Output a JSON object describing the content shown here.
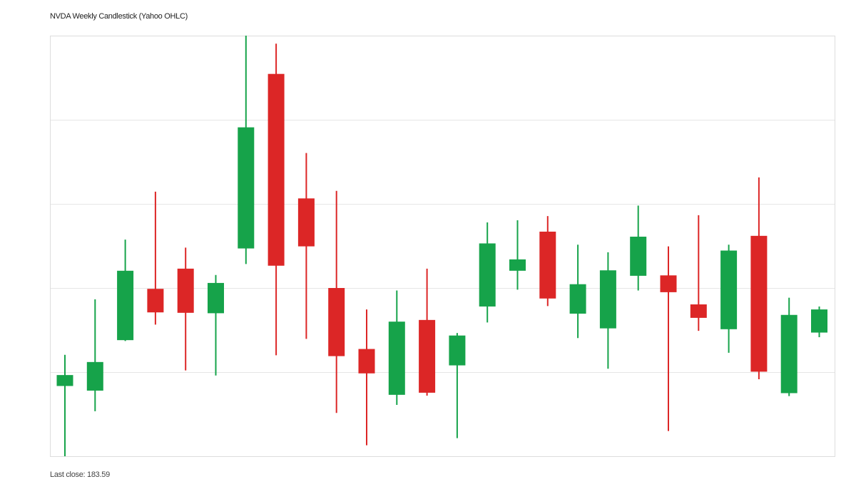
{
  "colors": {
    "up": "#16a34a",
    "down": "#dc2626",
    "grid": "#e6e6e6",
    "frame": "#dddddd"
  },
  "chart_data": {
    "type": "candlestick",
    "title": "NVDA Weekly Candlestick (Yahoo OHLC)",
    "footer": "Last close: 183.59",
    "xlabel": "",
    "ylabel": "",
    "ylim": [
      0,
      100
    ],
    "grid": true,
    "legend": "none",
    "candles": [
      {
        "open": 16.7,
        "high": 24.1,
        "low": 0.0,
        "close": 19.3
      },
      {
        "open": 15.6,
        "high": 37.3,
        "low": 10.7,
        "close": 22.4
      },
      {
        "open": 27.6,
        "high": 51.5,
        "low": 27.4,
        "close": 44.1
      },
      {
        "open": 39.8,
        "high": 62.9,
        "low": 31.3,
        "close": 34.2
      },
      {
        "open": 44.6,
        "high": 49.6,
        "low": 20.4,
        "close": 34.1
      },
      {
        "open": 34.0,
        "high": 43.1,
        "low": 19.2,
        "close": 41.2
      },
      {
        "open": 49.4,
        "high": 100.0,
        "low": 45.7,
        "close": 78.2
      },
      {
        "open": 90.9,
        "high": 98.1,
        "low": 24.0,
        "close": 45.3
      },
      {
        "open": 61.3,
        "high": 72.1,
        "low": 27.9,
        "close": 49.9
      },
      {
        "open": 40.0,
        "high": 63.1,
        "low": 10.3,
        "close": 23.8
      },
      {
        "open": 25.5,
        "high": 34.9,
        "low": 2.6,
        "close": 19.7
      },
      {
        "open": 14.6,
        "high": 39.4,
        "low": 12.2,
        "close": 32.0
      },
      {
        "open": 32.4,
        "high": 44.6,
        "low": 14.4,
        "close": 15.1
      },
      {
        "open": 21.6,
        "high": 29.3,
        "low": 4.3,
        "close": 28.7
      },
      {
        "open": 35.6,
        "high": 55.6,
        "low": 31.8,
        "close": 50.6
      },
      {
        "open": 44.1,
        "high": 56.1,
        "low": 39.6,
        "close": 46.8
      },
      {
        "open": 53.4,
        "high": 57.1,
        "low": 35.7,
        "close": 37.5
      },
      {
        "open": 33.9,
        "high": 50.3,
        "low": 28.1,
        "close": 40.9
      },
      {
        "open": 30.4,
        "high": 48.5,
        "low": 20.8,
        "close": 44.2
      },
      {
        "open": 42.9,
        "high": 59.6,
        "low": 39.4,
        "close": 52.2
      },
      {
        "open": 43.0,
        "high": 49.9,
        "low": 6.0,
        "close": 39.0
      },
      {
        "open": 36.1,
        "high": 57.3,
        "low": 29.8,
        "close": 32.9
      },
      {
        "open": 30.2,
        "high": 50.3,
        "low": 24.6,
        "close": 48.9
      },
      {
        "open": 52.4,
        "high": 66.3,
        "low": 18.3,
        "close": 20.1
      },
      {
        "open": 15.0,
        "high": 37.7,
        "low": 14.3,
        "close": 33.6
      },
      {
        "open": 29.4,
        "high": 35.6,
        "low": 28.3,
        "close": 34.9
      }
    ]
  }
}
